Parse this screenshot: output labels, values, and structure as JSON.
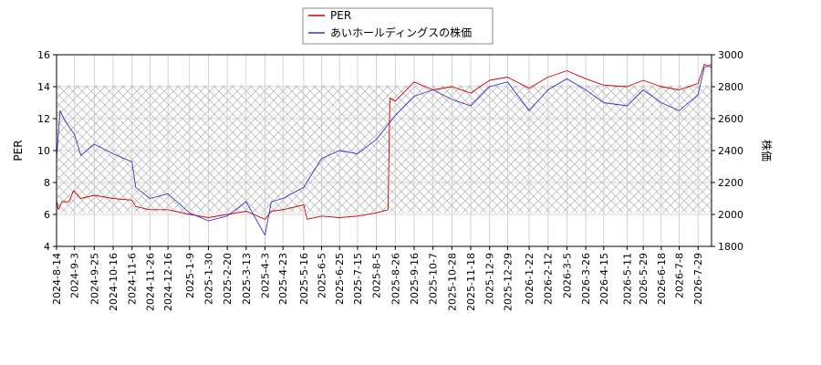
{
  "chart_data": {
    "type": "line",
    "xlabel": "",
    "ylabel_left": "PER",
    "ylabel_right": "株価",
    "ylim_left": [
      4,
      16
    ],
    "ylim_right": [
      1800,
      3000
    ],
    "yticks_left": [
      "4",
      "6",
      "8",
      "10",
      "12",
      "14",
      "16"
    ],
    "yticks_right": [
      "1800",
      "2000",
      "2200",
      "2400",
      "2600",
      "2800",
      "3000"
    ],
    "xlim": [
      "2024-8-14",
      "2026-8-13"
    ],
    "xticks": [
      "2024-8-14",
      "2024-9-3",
      "2024-9-25",
      "2024-10-16",
      "2024-11-6",
      "2024-11-26",
      "2024-12-16",
      "2025-1-9",
      "2025-1-30",
      "2025-2-20",
      "2025-3-13",
      "2025-4-3",
      "2025-4-23",
      "2025-5-16",
      "2025-6-5",
      "2025-6-25",
      "2025-7-15",
      "2025-8-5",
      "2025-8-26",
      "2025-9-16",
      "2025-10-7",
      "2025-10-28",
      "2025-11-18",
      "2025-12-9",
      "2025-12-29",
      "2026-1-22",
      "2026-2-12",
      "2026-3-5",
      "2026-3-26",
      "2026-4-15",
      "2026-5-11",
      "2026-5-29",
      "2026-6-18",
      "2026-7-8",
      "2026-7-29"
    ],
    "grid": true,
    "hatched_band_left": [
      6.1,
      14.1
    ],
    "legend_placement": "top-center",
    "series": [
      {
        "name": "PER",
        "axis": "left",
        "color": "#cc0000",
        "points": [
          [
            "2024-8-14",
            6.9
          ],
          [
            "2024-8-16",
            6.3
          ],
          [
            "2024-8-20",
            6.8
          ],
          [
            "2024-8-28",
            6.8
          ],
          [
            "2024-9-2",
            7.5
          ],
          [
            "2024-9-10",
            7.0
          ],
          [
            "2024-9-25",
            7.2
          ],
          [
            "2024-10-16",
            7.0
          ],
          [
            "2024-11-6",
            6.9
          ],
          [
            "2024-11-10",
            6.5
          ],
          [
            "2024-11-26",
            6.3
          ],
          [
            "2024-12-16",
            6.3
          ],
          [
            "2025-1-9",
            6.0
          ],
          [
            "2025-1-30",
            5.8
          ],
          [
            "2025-2-20",
            6.0
          ],
          [
            "2025-3-13",
            6.2
          ],
          [
            "2025-4-3",
            5.7
          ],
          [
            "2025-4-10",
            6.2
          ],
          [
            "2025-4-23",
            6.3
          ],
          [
            "2025-5-16",
            6.6
          ],
          [
            "2025-5-20",
            5.7
          ],
          [
            "2025-6-5",
            5.9
          ],
          [
            "2025-6-25",
            5.8
          ],
          [
            "2025-7-15",
            5.9
          ],
          [
            "2025-8-5",
            6.1
          ],
          [
            "2025-8-18",
            6.3
          ],
          [
            "2025-8-20",
            13.3
          ],
          [
            "2025-8-26",
            13.1
          ],
          [
            "2025-9-16",
            14.3
          ],
          [
            "2025-10-7",
            13.8
          ],
          [
            "2025-10-28",
            14.0
          ],
          [
            "2025-11-18",
            13.6
          ],
          [
            "2025-12-9",
            14.4
          ],
          [
            "2025-12-29",
            14.6
          ],
          [
            "2026-1-22",
            13.9
          ],
          [
            "2026-2-12",
            14.6
          ],
          [
            "2026-3-5",
            15.0
          ],
          [
            "2026-3-26",
            14.5
          ],
          [
            "2026-4-15",
            14.1
          ],
          [
            "2026-5-11",
            14.0
          ],
          [
            "2026-5-29",
            14.4
          ],
          [
            "2026-6-18",
            14.0
          ],
          [
            "2026-7-8",
            13.8
          ],
          [
            "2026-7-29",
            14.2
          ],
          [
            "2026-8-5",
            15.4
          ],
          [
            "2026-8-13",
            15.2
          ]
        ]
      },
      {
        "name": "あいホールディングスの株価",
        "axis": "right",
        "color": "#3333cc",
        "points": [
          [
            "2024-8-14",
            2350
          ],
          [
            "2024-8-18",
            2650
          ],
          [
            "2024-8-24",
            2580
          ],
          [
            "2024-9-3",
            2500
          ],
          [
            "2024-9-10",
            2370
          ],
          [
            "2024-9-25",
            2440
          ],
          [
            "2024-10-16",
            2380
          ],
          [
            "2024-11-6",
            2330
          ],
          [
            "2024-11-10",
            2170
          ],
          [
            "2024-11-26",
            2100
          ],
          [
            "2024-12-16",
            2130
          ],
          [
            "2025-1-9",
            2010
          ],
          [
            "2025-1-30",
            1960
          ],
          [
            "2025-2-20",
            1990
          ],
          [
            "2025-3-13",
            2080
          ],
          [
            "2025-4-3",
            1870
          ],
          [
            "2025-4-10",
            2080
          ],
          [
            "2025-4-23",
            2100
          ],
          [
            "2025-5-16",
            2170
          ],
          [
            "2025-6-5",
            2350
          ],
          [
            "2025-6-25",
            2400
          ],
          [
            "2025-7-15",
            2380
          ],
          [
            "2025-8-5",
            2470
          ],
          [
            "2025-8-26",
            2620
          ],
          [
            "2025-9-16",
            2740
          ],
          [
            "2025-10-7",
            2780
          ],
          [
            "2025-10-28",
            2720
          ],
          [
            "2025-11-18",
            2680
          ],
          [
            "2025-12-9",
            2800
          ],
          [
            "2025-12-29",
            2830
          ],
          [
            "2026-1-22",
            2650
          ],
          [
            "2026-2-12",
            2780
          ],
          [
            "2026-3-5",
            2850
          ],
          [
            "2026-3-26",
            2780
          ],
          [
            "2026-4-15",
            2700
          ],
          [
            "2026-5-11",
            2680
          ],
          [
            "2026-5-29",
            2780
          ],
          [
            "2026-6-18",
            2700
          ],
          [
            "2026-7-8",
            2650
          ],
          [
            "2026-7-29",
            2750
          ],
          [
            "2026-8-5",
            2920
          ],
          [
            "2026-8-13",
            2940
          ]
        ]
      }
    ]
  }
}
